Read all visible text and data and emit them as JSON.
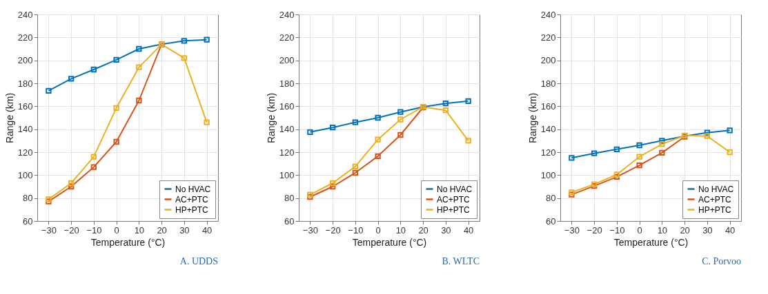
{
  "chart_data": [
    {
      "type": "line",
      "title": "A. UDDS",
      "xlabel": "Temperature (°C)",
      "ylabel": "Range (km)",
      "x": [
        -30,
        -20,
        -10,
        0,
        10,
        20,
        30,
        40
      ],
      "xlim": [
        -35,
        45
      ],
      "xticks": [
        -30,
        -20,
        -10,
        0,
        10,
        20,
        30,
        40
      ],
      "ylim": [
        60,
        240
      ],
      "yticks": [
        60,
        80,
        100,
        120,
        140,
        160,
        180,
        200,
        220,
        240
      ],
      "grid": true,
      "legend": "bottom right",
      "marker": "square",
      "series": [
        {
          "name": "No HVAC",
          "color": "#0072bd",
          "values": [
            173.5,
            184,
            192,
            200.5,
            210,
            214,
            217,
            218
          ]
        },
        {
          "name": "AC+PTC",
          "color": "#d95319",
          "values": [
            77,
            90,
            107,
            129,
            165,
            214,
            null,
            null
          ]
        },
        {
          "name": "HP+PTC",
          "color": "#edb120",
          "values": [
            79,
            93,
            116,
            158.5,
            194,
            214,
            202,
            146
          ]
        }
      ]
    },
    {
      "type": "line",
      "title": "B. WLTC",
      "xlabel": "Temperature (°C)",
      "ylabel": "Range (km)",
      "x": [
        -30,
        -20,
        -10,
        0,
        10,
        20,
        30,
        40
      ],
      "xlim": [
        -35,
        45
      ],
      "xticks": [
        -30,
        -20,
        -10,
        0,
        10,
        20,
        30,
        40
      ],
      "ylim": [
        60,
        240
      ],
      "yticks": [
        60,
        80,
        100,
        120,
        140,
        160,
        180,
        200,
        220,
        240
      ],
      "grid": true,
      "legend": "bottom right",
      "marker": "square",
      "series": [
        {
          "name": "No HVAC",
          "color": "#0072bd",
          "values": [
            137.5,
            141.5,
            146,
            150,
            155,
            159.5,
            162.5,
            164.5
          ]
        },
        {
          "name": "AC+PTC",
          "color": "#d95319",
          "values": [
            81,
            90,
            102,
            116.5,
            135,
            159,
            null,
            null
          ]
        },
        {
          "name": "HP+PTC",
          "color": "#edb120",
          "values": [
            83,
            93,
            107.5,
            131,
            148.5,
            159.5,
            156.5,
            130
          ]
        }
      ]
    },
    {
      "type": "line",
      "title": "C. Porvoo",
      "xlabel": "Temperature (°C)",
      "ylabel": "Range (km)",
      "x": [
        -30,
        -20,
        -10,
        0,
        10,
        20,
        30,
        40
      ],
      "xlim": [
        -35,
        45
      ],
      "xticks": [
        -30,
        -20,
        -10,
        0,
        10,
        20,
        30,
        40
      ],
      "ylim": [
        60,
        240
      ],
      "yticks": [
        60,
        80,
        100,
        120,
        140,
        160,
        180,
        200,
        220,
        240
      ],
      "grid": true,
      "legend": "bottom right",
      "marker": "square",
      "series": [
        {
          "name": "No HVAC",
          "color": "#0072bd",
          "values": [
            115,
            119,
            122.5,
            126,
            130,
            134,
            137,
            139
          ]
        },
        {
          "name": "AC+PTC",
          "color": "#d95319",
          "values": [
            83,
            90.5,
            98.5,
            108.5,
            119.5,
            133.5,
            null,
            null
          ]
        },
        {
          "name": "HP+PTC",
          "color": "#edb120",
          "values": [
            85,
            92,
            100.5,
            116,
            127,
            134.5,
            134,
            120
          ]
        }
      ]
    }
  ]
}
